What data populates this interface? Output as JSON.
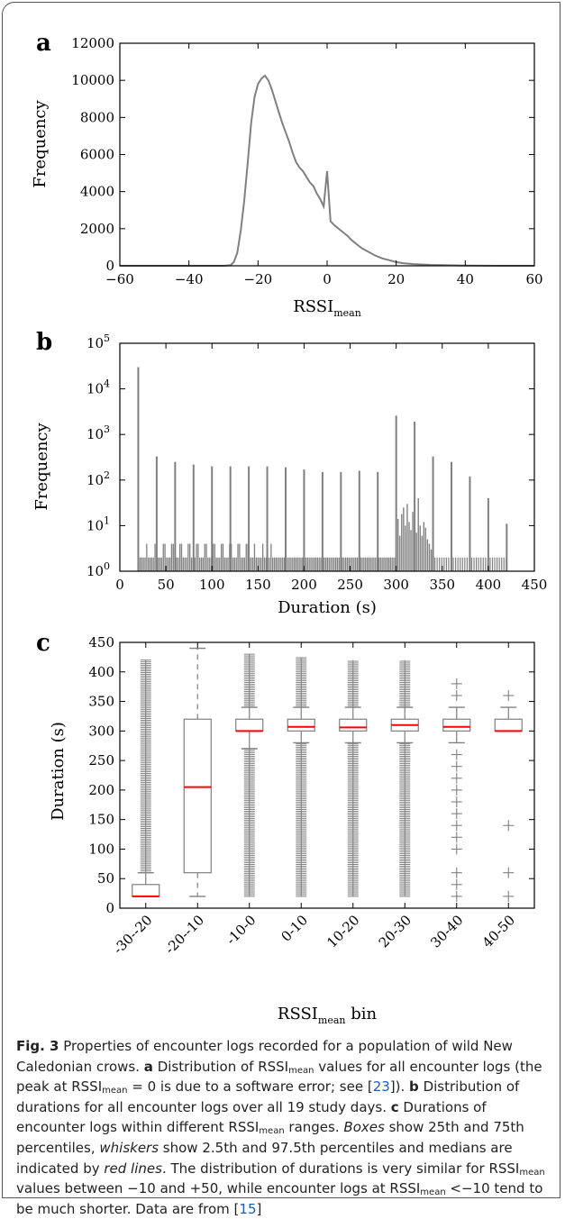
{
  "panels": {
    "a": {
      "letter": "a"
    },
    "b": {
      "letter": "b"
    },
    "c": {
      "letter": "c"
    }
  },
  "chart_data": [
    {
      "type": "line",
      "xlabel": "RSSI_mean",
      "ylabel": "Frequency",
      "xlim": [
        -60,
        60
      ],
      "ylim": [
        0,
        12000
      ],
      "xticks": [
        "−60",
        "−40",
        "−20",
        "0",
        "20",
        "40",
        "60"
      ],
      "yticks": [
        "0",
        "2000",
        "4000",
        "6000",
        "8000",
        "10000",
        "12000"
      ],
      "color": "#808080",
      "series": [
        {
          "x": [
            -60,
            -30,
            -28,
            -27,
            -26,
            -25,
            -24,
            -23,
            -22,
            -21,
            -20,
            -19,
            -18,
            -17,
            -16,
            -15,
            -14,
            -13,
            -12,
            -11,
            -10,
            -9,
            -8,
            -7,
            -6,
            -5,
            -4,
            -3,
            -2,
            -1,
            0,
            1,
            2,
            3,
            4,
            5,
            6,
            7,
            8,
            9,
            10,
            12,
            14,
            16,
            18,
            20,
            22,
            25,
            30,
            35,
            40,
            45,
            50,
            60
          ],
          "values": [
            0,
            0,
            30,
            200,
            700,
            1900,
            3500,
            5500,
            7700,
            9100,
            9800,
            10100,
            10250,
            10000,
            9500,
            8900,
            8300,
            7700,
            7200,
            6700,
            6100,
            5600,
            5300,
            5100,
            4800,
            4500,
            4300,
            3900,
            3600,
            3200,
            5100,
            2400,
            2200,
            2050,
            1900,
            1750,
            1600,
            1400,
            1250,
            1100,
            950,
            750,
            550,
            400,
            300,
            200,
            140,
            90,
            50,
            30,
            15,
            5,
            2,
            0
          ]
        }
      ]
    },
    {
      "type": "bar",
      "xlabel": "Duration (s)",
      "ylabel": "Frequency",
      "yscale": "log",
      "xlim": [
        0,
        450
      ],
      "ylim": [
        1,
        100000
      ],
      "xticks": [
        "0",
        "50",
        "100",
        "150",
        "200",
        "250",
        "300",
        "350",
        "400",
        "450"
      ],
      "yticks": [
        {
          "base": "10",
          "exp": "0"
        },
        {
          "base": "10",
          "exp": "1"
        },
        {
          "base": "10",
          "exp": "2"
        },
        {
          "base": "10",
          "exp": "3"
        },
        {
          "base": "10",
          "exp": "4"
        },
        {
          "base": "10",
          "exp": "5"
        }
      ],
      "color": "#808080",
      "peaks": [
        {
          "x": 20,
          "value": 30000
        },
        {
          "x": 40,
          "value": 330
        },
        {
          "x": 60,
          "value": 250
        },
        {
          "x": 80,
          "value": 220
        },
        {
          "x": 100,
          "value": 200
        },
        {
          "x": 120,
          "value": 200
        },
        {
          "x": 140,
          "value": 200
        },
        {
          "x": 160,
          "value": 200
        },
        {
          "x": 180,
          "value": 190
        },
        {
          "x": 200,
          "value": 170
        },
        {
          "x": 220,
          "value": 150
        },
        {
          "x": 240,
          "value": 150
        },
        {
          "x": 260,
          "value": 160
        },
        {
          "x": 280,
          "value": 150
        },
        {
          "x": 300,
          "value": 2600
        },
        {
          "x": 320,
          "value": 1900
        },
        {
          "x": 340,
          "value": 330
        },
        {
          "x": 360,
          "value": 250
        },
        {
          "x": 380,
          "value": 120
        },
        {
          "x": 400,
          "value": 40
        },
        {
          "x": 420,
          "value": 11
        }
      ],
      "baseline_value": 2,
      "cluster_300_320": [
        9,
        14,
        6,
        18,
        25,
        10,
        30,
        12,
        8,
        20,
        15,
        7,
        40,
        10,
        6,
        12,
        9,
        5,
        4,
        3
      ]
    },
    {
      "type": "box",
      "xlabel": "RSSI_mean bin",
      "ylabel": "Duration (s)",
      "ylim": [
        0,
        450
      ],
      "yticks": [
        "0",
        "50",
        "100",
        "150",
        "200",
        "250",
        "300",
        "350",
        "400",
        "450"
      ],
      "categories": [
        "-30--20",
        "-20--10",
        "-10-0",
        "0-10",
        "10-20",
        "20-30",
        "30-40",
        "40-50"
      ],
      "median_color": "#ff0000",
      "box_color": "#808080",
      "boxes": [
        {
          "q1": 20,
          "median": 20,
          "q3": 40,
          "whislo": 20,
          "whishi": 60,
          "outliers_dense": [
            60,
            420
          ]
        },
        {
          "q1": 60,
          "median": 205,
          "q3": 320,
          "whislo": 20,
          "whishi": 440,
          "outliers_dense": null
        },
        {
          "q1": 300,
          "median": 300,
          "q3": 320,
          "whislo": 270,
          "whishi": 340,
          "outliers_dense": [
            [
              20,
              270
            ],
            [
              340,
              430
            ]
          ]
        },
        {
          "q1": 300,
          "median": 307,
          "q3": 320,
          "whislo": 280,
          "whishi": 340,
          "outliers_dense": [
            [
              20,
              280
            ],
            [
              340,
              425
            ]
          ]
        },
        {
          "q1": 300,
          "median": 306,
          "q3": 320,
          "whislo": 280,
          "whishi": 340,
          "outliers_dense": [
            [
              20,
              280
            ],
            [
              340,
              420
            ]
          ]
        },
        {
          "q1": 300,
          "median": 310,
          "q3": 320,
          "whislo": 280,
          "whishi": 340,
          "outliers_dense": [
            [
              20,
              280
            ],
            [
              340,
              420
            ]
          ]
        },
        {
          "q1": 300,
          "median": 307,
          "q3": 320,
          "whislo": 280,
          "whishi": 340,
          "outliers": [
            20,
            40,
            60,
            100,
            120,
            140,
            160,
            180,
            200,
            220,
            240,
            260,
            360,
            380
          ]
        },
        {
          "q1": 300,
          "median": 300,
          "q3": 320,
          "whislo": 300,
          "whishi": 340,
          "outliers": [
            20,
            60,
            140,
            360
          ]
        }
      ]
    }
  ],
  "axis_label_parts": {
    "rssi": "RSSI",
    "mean_sub": "mean",
    "bin_suffix": " bin"
  },
  "caption": {
    "fig_label": "Fig. 3",
    "p1": "  Properties of encounter logs recorded for a population of wild New Caledonian crows. ",
    "a": "a",
    "p2": " Distribution of RSSI",
    "p3": " values for all encounter logs (the peak at RSSI",
    "p4": " = 0 is due to a software error; see [",
    "ref1": "23",
    "p5": "]). ",
    "b": "b",
    "p6": " Distribution of durations for all encounter logs over all 19 study days. ",
    "c": "c",
    "p7": " Durations of encounter logs within different RSSI",
    "p8": " ranges. ",
    "boxes": "Boxes",
    "p9": " show 25th and 75th percentiles, ",
    "whiskers": "whiskers",
    "p10": " show 2.5th and 97.5th percentiles and medians are indicated by ",
    "redlines": "red lines",
    "p11": ". The distribution of durations is very similar for RSSI",
    "p12": " values between −10 and +50, while encounter logs at RSSI",
    "p13": " <−10 tend to be much shorter. Data are from [",
    "ref2": "15",
    "p14": "]",
    "sub": "mean"
  }
}
